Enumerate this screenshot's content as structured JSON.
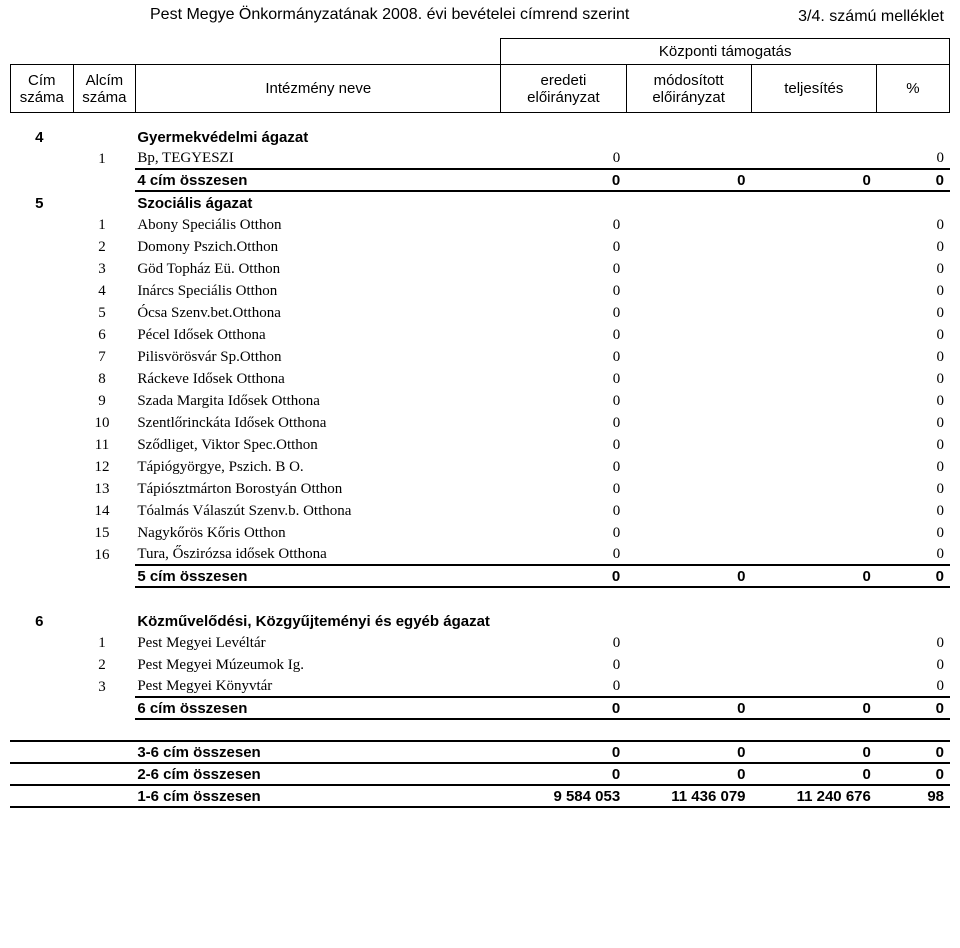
{
  "attachment_label": "3/4. számú melléklet",
  "page_title": "Pest Megye Önkormányzatának 2008. évi bevételei címrend szerint",
  "header": {
    "cim": "Cím száma",
    "alcim": "Alcím száma",
    "intezmeny": "Intézmény neve",
    "kozponti": "Központi támogatás",
    "eredeti": "eredeti előirányzat",
    "modositott": "módosított előirányzat",
    "teljesites": "teljesítés",
    "percent": "%"
  },
  "section4": {
    "cim": "4",
    "title": "Gyermekvédelmi ágazat",
    "rows": [
      {
        "alcim": "1",
        "name": "Bp, TEGYESZI",
        "v1": "0",
        "v4": "0"
      }
    ],
    "sum": {
      "label": "4 cím összesen",
      "v1": "0",
      "v2": "0",
      "v3": "0",
      "v4": "0"
    }
  },
  "section5": {
    "cim": "5",
    "title": "Szociális ágazat",
    "rows": [
      {
        "alcim": "1",
        "name": "Abony Speciális Otthon",
        "v1": "0",
        "v4": "0"
      },
      {
        "alcim": "2",
        "name": "Domony Pszich.Otthon",
        "v1": "0",
        "v4": "0"
      },
      {
        "alcim": "3",
        "name": "Göd Topház Eü. Otthon",
        "v1": "0",
        "v4": "0"
      },
      {
        "alcim": "4",
        "name": "Inárcs Speciális Otthon",
        "v1": "0",
        "v4": "0"
      },
      {
        "alcim": "5",
        "name": "Ócsa Szenv.bet.Otthona",
        "v1": "0",
        "v4": "0"
      },
      {
        "alcim": "6",
        "name": "Pécel Idősek Otthona",
        "v1": "0",
        "v4": "0"
      },
      {
        "alcim": "7",
        "name": "Pilisvörösvár Sp.Otthon",
        "v1": "0",
        "v4": "0"
      },
      {
        "alcim": "8",
        "name": "Ráckeve Idősek Otthona",
        "v1": "0",
        "v4": "0"
      },
      {
        "alcim": "9",
        "name": "Szada Margita Idősek Otthona",
        "v1": "0",
        "v4": "0"
      },
      {
        "alcim": "10",
        "name": "Szentlőrinckáta Idősek Otthona",
        "v1": "0",
        "v4": "0"
      },
      {
        "alcim": "11",
        "name": "Sződliget, Viktor Spec.Otthon",
        "v1": "0",
        "v4": "0"
      },
      {
        "alcim": "12",
        "name": "Tápiógyörgye, Pszich. B O.",
        "v1": "0",
        "v4": "0"
      },
      {
        "alcim": "13",
        "name": "Tápiósztmárton Borostyán Otthon",
        "v1": "0",
        "v4": "0"
      },
      {
        "alcim": "14",
        "name": "Tóalmás Válaszút Szenv.b. Otthona",
        "v1": "0",
        "v4": "0"
      },
      {
        "alcim": "15",
        "name": "Nagykőrös Kőris Otthon",
        "v1": "0",
        "v4": "0"
      },
      {
        "alcim": "16",
        "name": "Tura, Őszirózsa idősek Otthona",
        "v1": "0",
        "v4": "0"
      }
    ],
    "sum": {
      "label": "5 cím összesen",
      "v1": "0",
      "v2": "0",
      "v3": "0",
      "v4": "0"
    }
  },
  "section6": {
    "cim": "6",
    "title": "Közművelődési, Közgyűjteményi és egyéb ágazat",
    "rows": [
      {
        "alcim": "1",
        "name": "Pest Megyei Levéltár",
        "v1": "0",
        "v4": "0"
      },
      {
        "alcim": "2",
        "name": "Pest Megyei Múzeumok Ig.",
        "v1": "0",
        "v4": "0"
      },
      {
        "alcim": "3",
        "name": "Pest Megyei Könyvtár",
        "v1": "0",
        "v4": "0"
      }
    ],
    "sum": {
      "label": "6 cím összesen",
      "v1": "0",
      "v2": "0",
      "v3": "0",
      "v4": "0"
    }
  },
  "grand": [
    {
      "label": "3-6 cím összesen",
      "v1": "0",
      "v2": "0",
      "v3": "0",
      "v4": "0"
    },
    {
      "label": "2-6 cím összesen",
      "v1": "0",
      "v2": "0",
      "v3": "0",
      "v4": "0"
    },
    {
      "label": "1-6 cím összesen",
      "v1": "9 584 053",
      "v2": "11 436 079",
      "v3": "11 240 676",
      "v4": "98"
    }
  ]
}
